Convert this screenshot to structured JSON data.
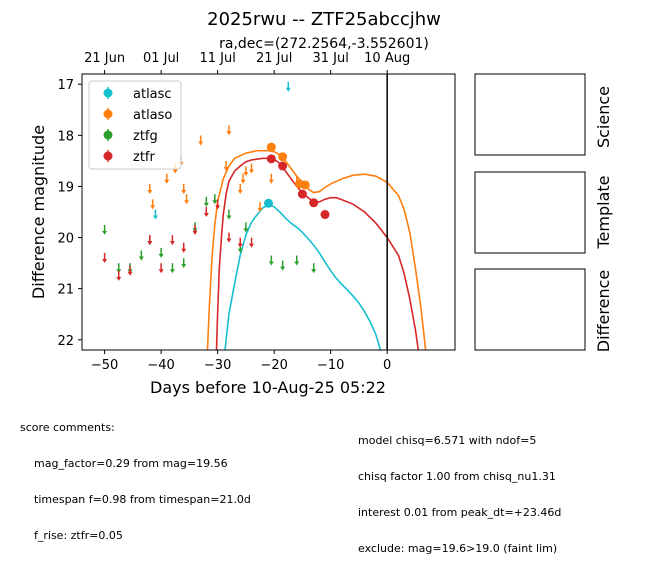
{
  "chart_data": {
    "type": "scatter",
    "title": "2025rwu -- ZTF25abccjhw",
    "subtitle": "ra,dec=(272.2564,-3.552601)",
    "xlabel": "Days before 10-Aug-25 05:22",
    "ylabel": "Difference magnitude",
    "xlim": [
      -54,
      12
    ],
    "ylim": [
      22.2,
      16.8
    ],
    "inverted_y": true,
    "xticks": [
      -50,
      -40,
      -30,
      -20,
      -10,
      0
    ],
    "xtick_labels": [
      "−50",
      "−40",
      "−30",
      "−20",
      "−10",
      "0"
    ],
    "yticks": [
      17,
      18,
      19,
      20,
      21,
      22
    ],
    "ytick_labels": [
      "17",
      "18",
      "19",
      "20",
      "21",
      "22"
    ],
    "top_axis": {
      "ticks": [
        -50,
        -40,
        -30,
        -20,
        -10,
        0
      ],
      "labels": [
        "21 Jun",
        "01 Jul",
        "11 Jul",
        "21 Jul",
        "31 Jul",
        "10 Aug"
      ]
    },
    "vline_x": 0,
    "legend_position": "upper-left",
    "series": [
      {
        "name": "atlasc",
        "color": "#17becf",
        "detections": [
          {
            "x": -21,
            "y": 19.33,
            "err": 0.08
          }
        ],
        "upper_limits": [
          {
            "x": -41,
            "y": 19.55
          },
          {
            "x": -17.5,
            "y": 17.05
          }
        ]
      },
      {
        "name": "atlaso",
        "color": "#ff7f0e",
        "detections": [
          {
            "x": -20.5,
            "y": 18.23,
            "err": 0.05
          },
          {
            "x": -18.5,
            "y": 18.42,
            "err": 0.06
          },
          {
            "x": -15.5,
            "y": 18.95,
            "err": 0.08
          },
          {
            "x": -14.5,
            "y": 18.97,
            "err": 0.08
          }
        ],
        "upper_limits": [
          {
            "x": -42,
            "y": 19.05
          },
          {
            "x": -41.5,
            "y": 19.35
          },
          {
            "x": -39,
            "y": 18.85
          },
          {
            "x": -37.5,
            "y": 18.65
          },
          {
            "x": -36.5,
            "y": 18.5
          },
          {
            "x": -36,
            "y": 19.05
          },
          {
            "x": -35.5,
            "y": 19.25
          },
          {
            "x": -33,
            "y": 18.1
          },
          {
            "x": -28.5,
            "y": 18.6
          },
          {
            "x": -28,
            "y": 17.9
          },
          {
            "x": -26,
            "y": 19.05
          },
          {
            "x": -25.5,
            "y": 18.85
          },
          {
            "x": -25,
            "y": 18.7
          },
          {
            "x": -24,
            "y": 18.65
          },
          {
            "x": -22.5,
            "y": 19.4
          },
          {
            "x": -20.5,
            "y": 18.85
          },
          {
            "x": -16,
            "y": 18.9
          }
        ]
      },
      {
        "name": "ztfg",
        "color": "#2ca02c",
        "detections": [],
        "upper_limits": [
          {
            "x": -50,
            "y": 19.85
          },
          {
            "x": -47.5,
            "y": 20.6
          },
          {
            "x": -45.5,
            "y": 20.6
          },
          {
            "x": -43.5,
            "y": 20.35
          },
          {
            "x": -42,
            "y": 20.05
          },
          {
            "x": -40,
            "y": 20.3
          },
          {
            "x": -38,
            "y": 20.6
          },
          {
            "x": -36,
            "y": 20.5
          },
          {
            "x": -34,
            "y": 19.8
          },
          {
            "x": -32,
            "y": 19.3
          },
          {
            "x": -30.5,
            "y": 19.25
          },
          {
            "x": -28,
            "y": 19.55
          },
          {
            "x": -26,
            "y": 20.2
          },
          {
            "x": -25,
            "y": 19.8
          },
          {
            "x": -20.5,
            "y": 20.45
          },
          {
            "x": -18.5,
            "y": 20.55
          },
          {
            "x": -16,
            "y": 20.45
          },
          {
            "x": -13,
            "y": 20.6
          }
        ]
      },
      {
        "name": "ztfr",
        "color": "#d62728",
        "detections": [
          {
            "x": -20.5,
            "y": 18.46,
            "err": 0.05
          },
          {
            "x": -18.5,
            "y": 18.6,
            "err": 0.06
          },
          {
            "x": -15,
            "y": 19.15,
            "err": 0.07
          },
          {
            "x": -13,
            "y": 19.32,
            "err": 0.08
          },
          {
            "x": -11,
            "y": 19.55,
            "err": 0.08
          }
        ],
        "upper_limits": [
          {
            "x": -50,
            "y": 20.4
          },
          {
            "x": -47.5,
            "y": 20.75
          },
          {
            "x": -45.5,
            "y": 20.65
          },
          {
            "x": -42,
            "y": 20.05
          },
          {
            "x": -40,
            "y": 20.6
          },
          {
            "x": -38,
            "y": 20.05
          },
          {
            "x": -36,
            "y": 20.2
          },
          {
            "x": -34,
            "y": 19.85
          },
          {
            "x": -32,
            "y": 19.5
          },
          {
            "x": -30,
            "y": 19.35
          },
          {
            "x": -28,
            "y": 20.0
          },
          {
            "x": -26,
            "y": 20.1
          },
          {
            "x": -24,
            "y": 20.1
          }
        ]
      }
    ],
    "model_curves": [
      {
        "color": "#17becf",
        "points": [
          [
            -28.7,
            22.2
          ],
          [
            -28,
            21.5
          ],
          [
            -27,
            20.9
          ],
          [
            -26,
            20.35
          ],
          [
            -25,
            19.95
          ],
          [
            -24,
            19.7
          ],
          [
            -23,
            19.55
          ],
          [
            -22,
            19.42
          ],
          [
            -21,
            19.36
          ],
          [
            -20,
            19.4
          ],
          [
            -19,
            19.5
          ],
          [
            -18,
            19.62
          ],
          [
            -17,
            19.72
          ],
          [
            -16,
            19.8
          ],
          [
            -15,
            19.9
          ],
          [
            -14,
            20.02
          ],
          [
            -13,
            20.15
          ],
          [
            -12,
            20.3
          ],
          [
            -11,
            20.48
          ],
          [
            -10,
            20.65
          ],
          [
            -9,
            20.8
          ],
          [
            -8,
            20.92
          ],
          [
            -7,
            21.03
          ],
          [
            -6,
            21.15
          ],
          [
            -5,
            21.28
          ],
          [
            -4,
            21.45
          ],
          [
            -3,
            21.65
          ],
          [
            -2,
            21.9
          ],
          [
            -1.2,
            22.2
          ]
        ]
      },
      {
        "color": "#ff7f0e",
        "points": [
          [
            -31.8,
            22.2
          ],
          [
            -31.5,
            21.4
          ],
          [
            -31,
            20.4
          ],
          [
            -30.5,
            19.75
          ],
          [
            -30,
            19.3
          ],
          [
            -29,
            18.85
          ],
          [
            -28,
            18.6
          ],
          [
            -27,
            18.45
          ],
          [
            -25,
            18.35
          ],
          [
            -23,
            18.3
          ],
          [
            -21,
            18.3
          ],
          [
            -20,
            18.32
          ],
          [
            -19,
            18.38
          ],
          [
            -18,
            18.5
          ],
          [
            -17,
            18.65
          ],
          [
            -16,
            18.8
          ],
          [
            -15,
            18.93
          ],
          [
            -14,
            19.05
          ],
          [
            -13,
            19.12
          ],
          [
            -12,
            19.1
          ],
          [
            -11,
            19.02
          ],
          [
            -10,
            18.95
          ],
          [
            -8,
            18.85
          ],
          [
            -6,
            18.78
          ],
          [
            -4,
            18.76
          ],
          [
            -2,
            18.8
          ],
          [
            0,
            18.92
          ],
          [
            2,
            19.18
          ],
          [
            3,
            19.45
          ],
          [
            4,
            19.9
          ],
          [
            5,
            20.6
          ],
          [
            6,
            21.4
          ],
          [
            6.8,
            22.2
          ]
        ]
      },
      {
        "color": "#d62728",
        "points": [
          [
            -30.2,
            22.2
          ],
          [
            -30,
            21.5
          ],
          [
            -29.7,
            20.6
          ],
          [
            -29.3,
            19.95
          ],
          [
            -29,
            19.55
          ],
          [
            -28.5,
            19.15
          ],
          [
            -28,
            18.9
          ],
          [
            -27,
            18.7
          ],
          [
            -26,
            18.6
          ],
          [
            -25,
            18.52
          ],
          [
            -24,
            18.48
          ],
          [
            -22,
            18.45
          ],
          [
            -21,
            18.45
          ],
          [
            -20,
            18.47
          ],
          [
            -19,
            18.55
          ],
          [
            -18,
            18.7
          ],
          [
            -17,
            18.85
          ],
          [
            -16,
            19.0
          ],
          [
            -15,
            19.12
          ],
          [
            -14,
            19.22
          ],
          [
            -13,
            19.3
          ],
          [
            -12,
            19.3
          ],
          [
            -11,
            19.25
          ],
          [
            -10,
            19.22
          ],
          [
            -9,
            19.22
          ],
          [
            -8,
            19.26
          ],
          [
            -6,
            19.35
          ],
          [
            -4,
            19.5
          ],
          [
            -2,
            19.72
          ],
          [
            0,
            20.0
          ],
          [
            2,
            20.35
          ],
          [
            3,
            20.7
          ],
          [
            4,
            21.2
          ],
          [
            5,
            21.8
          ],
          [
            5.5,
            22.2
          ]
        ]
      }
    ]
  },
  "side_panels": [
    "Science",
    "Template",
    "Difference"
  ],
  "score_comments": {
    "heading": "score comments:",
    "lines": [
      "mag_factor=0.29 from mag=19.56",
      "timespan f=0.98 from timespan=21.0d",
      "f_rise: ztfr=0.05"
    ]
  },
  "model_comments": [
    "model chisq=6.571 with ndof=5",
    "chisq factor 1.00 from chisq_nu1.31",
    "interest 0.01 from peak_dt=+23.46d",
    "exclude: mag=19.6>19.0 (faint lim)"
  ]
}
